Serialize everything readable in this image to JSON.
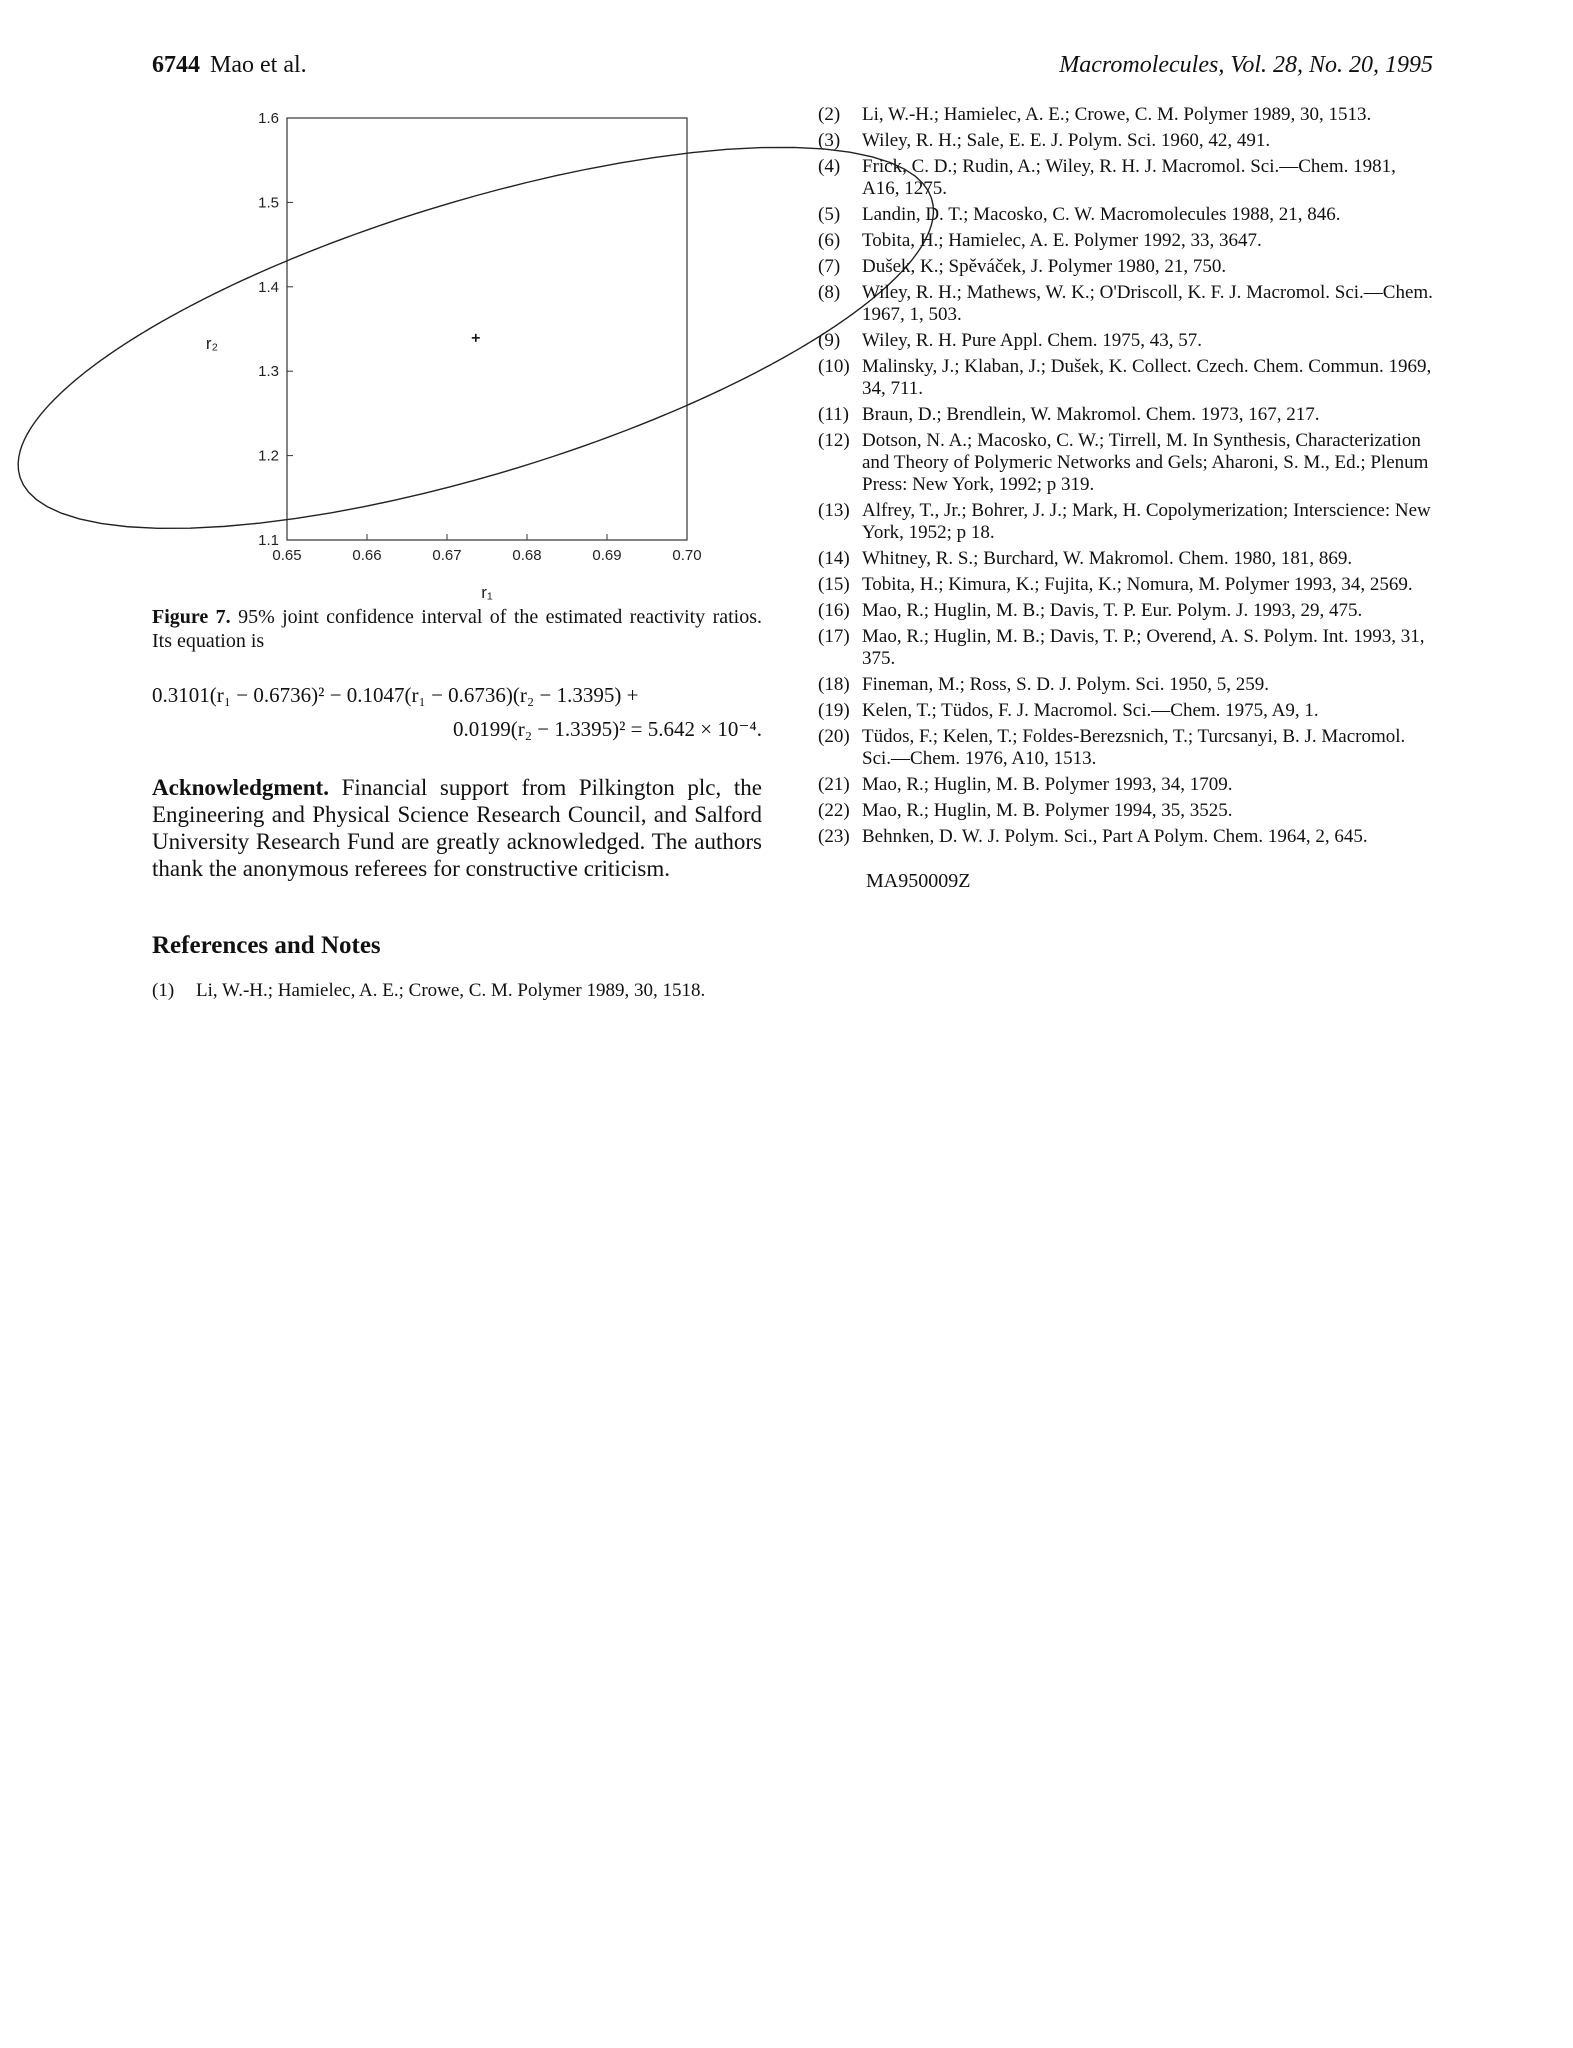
{
  "header": {
    "page_number": "6744",
    "authors": "Mao et al.",
    "journal": "Macromolecules, Vol. 28, No. 20, 1995"
  },
  "chart_data": {
    "type": "scatter",
    "xlabel": "r₁",
    "ylabel": "r₂",
    "xlim": [
      0.65,
      0.7
    ],
    "ylim": [
      1.1,
      1.6
    ],
    "x_ticks": [
      "0.65",
      "0.66",
      "0.67",
      "0.68",
      "0.69",
      "0.70"
    ],
    "y_ticks": [
      "1.1",
      "1.2",
      "1.3",
      "1.4",
      "1.5",
      "1.6"
    ],
    "point_estimate": {
      "x": 0.6736,
      "y": 1.3395
    },
    "ellipse": {
      "a": 0.3101,
      "b": -0.1047,
      "c": 0.0199,
      "center_x": 0.6736,
      "center_y": 1.3395,
      "rhs": 0.0005642
    }
  },
  "caption": {
    "label": "Figure 7.",
    "text": "95% joint confidence interval of the estimated reactivity ratios. Its equation is"
  },
  "equation": {
    "line1": "0.3101(r₁ − 0.6736)² − 0.1047(r₁ − 0.6736)(r₂ − 1.3395) +",
    "line2": "0.0199(r₂ − 1.3395)² = 5.642 × 10⁻⁴."
  },
  "acknowledgment": {
    "heading": "Acknowledgment.",
    "text": "Financial support from Pilkington plc, the Engineering and Physical Science Research Council, and Salford University Research Fund are greatly acknowledged. The authors thank the anonymous referees for constructive criticism."
  },
  "references_title": "References and Notes",
  "references": [
    {
      "num": "(1)",
      "text": "Li, W.-H.; Hamielec, A. E.; Crowe, C. M. Polymer 1989, 30, 1518."
    },
    {
      "num": "(2)",
      "text": "Li, W.-H.; Hamielec, A. E.; Crowe, C. M. Polymer 1989, 30, 1513."
    },
    {
      "num": "(3)",
      "text": "Wiley, R. H.; Sale, E. E. J. Polym. Sci. 1960, 42, 491."
    },
    {
      "num": "(4)",
      "text": "Frick, C. D.; Rudin, A.; Wiley, R. H. J. Macromol. Sci.—Chem. 1981, A16, 1275."
    },
    {
      "num": "(5)",
      "text": "Landin, D. T.; Macosko, C. W. Macromolecules 1988, 21, 846."
    },
    {
      "num": "(6)",
      "text": "Tobita, H.; Hamielec, A. E. Polymer 1992, 33, 3647."
    },
    {
      "num": "(7)",
      "text": "Dušek, K.; Spěváček, J. Polymer 1980, 21, 750."
    },
    {
      "num": "(8)",
      "text": "Wiley, R. H.; Mathews, W. K.; O'Driscoll, K. F. J. Macromol. Sci.—Chem. 1967, 1, 503."
    },
    {
      "num": "(9)",
      "text": "Wiley, R. H. Pure Appl. Chem. 1975, 43, 57."
    },
    {
      "num": "(10)",
      "text": "Malinsky, J.; Klaban, J.; Dušek, K. Collect. Czech. Chem. Commun. 1969, 34, 711."
    },
    {
      "num": "(11)",
      "text": "Braun, D.; Brendlein, W. Makromol. Chem. 1973, 167, 217."
    },
    {
      "num": "(12)",
      "text": "Dotson, N. A.; Macosko, C. W.; Tirrell, M. In Synthesis, Characterization and Theory of Polymeric Networks and Gels; Aharoni, S. M., Ed.; Plenum Press: New York, 1992; p 319."
    },
    {
      "num": "(13)",
      "text": "Alfrey, T., Jr.; Bohrer, J. J.; Mark, H. Copolymerization; Interscience: New York, 1952; p 18."
    },
    {
      "num": "(14)",
      "text": "Whitney, R. S.; Burchard, W. Makromol. Chem. 1980, 181, 869."
    },
    {
      "num": "(15)",
      "text": "Tobita, H.; Kimura, K.; Fujita, K.; Nomura, M. Polymer 1993, 34, 2569."
    },
    {
      "num": "(16)",
      "text": "Mao, R.; Huglin, M. B.; Davis, T. P. Eur. Polym. J. 1993, 29, 475."
    },
    {
      "num": "(17)",
      "text": "Mao, R.; Huglin, M. B.; Davis, T. P.; Overend, A. S. Polym. Int. 1993, 31, 375."
    },
    {
      "num": "(18)",
      "text": "Fineman, M.; Ross, S. D. J. Polym. Sci. 1950, 5, 259."
    },
    {
      "num": "(19)",
      "text": "Kelen, T.; Tüdos, F. J. Macromol. Sci.—Chem. 1975, A9, 1."
    },
    {
      "num": "(20)",
      "text": "Tüdos, F.; Kelen, T.; Foldes-Berezsnich, T.; Turcsanyi, B. J. Macromol. Sci.—Chem. 1976, A10, 1513."
    },
    {
      "num": "(21)",
      "text": "Mao, R.; Huglin, M. B. Polymer 1993, 34, 1709."
    },
    {
      "num": "(22)",
      "text": "Mao, R.; Huglin, M. B. Polymer 1994, 35, 3525."
    },
    {
      "num": "(23)",
      "text": "Behnken, D. W. J. Polym. Sci., Part A Polym. Chem. 1964, 2, 645."
    }
  ],
  "manuscript_id": "MA950009Z"
}
